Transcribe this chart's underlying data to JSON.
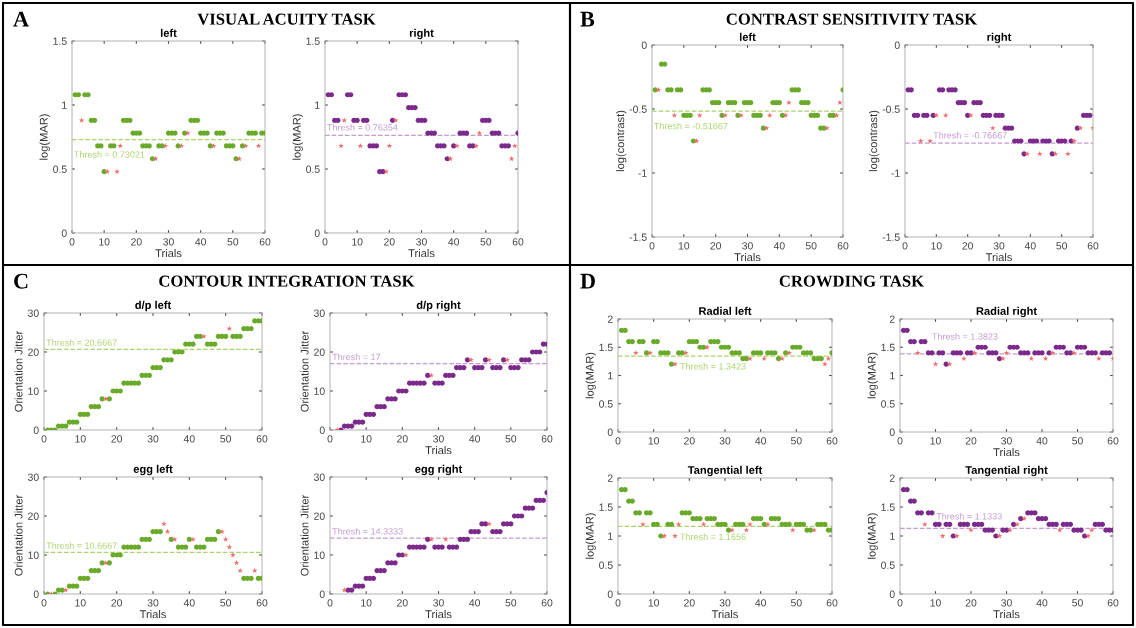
{
  "chart_data": [
    {
      "type": "scatter",
      "title": "left",
      "xlabel": "Trials",
      "ylabel": "log(MAR)",
      "xlim": [
        0,
        60
      ],
      "xticks": [
        0,
        10,
        20,
        30,
        40,
        50,
        60
      ],
      "ylim": [
        0,
        1.5
      ],
      "yticks": [
        0,
        0.5,
        1,
        1.5
      ],
      "annotations": [
        "A",
        "VISUAL ACUITY TASK"
      ],
      "ref_lines": [
        {
          "axis": "y",
          "value": 0.73021,
          "label": "Thresh = 0.73021",
          "color": "#a9d36b",
          "line_style": "dashed"
        }
      ],
      "series": [
        {
          "color": "#6aaa2a",
          "marker": "circle",
          "x": [
            1,
            2,
            4,
            5,
            6,
            7,
            8,
            9,
            10,
            12,
            13,
            16,
            17,
            18,
            19,
            20,
            21,
            22,
            23,
            24,
            25,
            27,
            28,
            30,
            31,
            32,
            33,
            35,
            37,
            38,
            39,
            40,
            41,
            42,
            43,
            45,
            46,
            47,
            48,
            49,
            50,
            51,
            53,
            55,
            56,
            57,
            59,
            60
          ],
          "values": [
            1.08,
            1.08,
            1.08,
            1.08,
            0.88,
            0.88,
            0.68,
            0.68,
            0.48,
            0.68,
            0.68,
            0.88,
            0.88,
            0.88,
            0.78,
            0.78,
            0.78,
            0.68,
            0.68,
            0.68,
            0.58,
            0.68,
            0.68,
            0.78,
            0.78,
            0.78,
            0.68,
            0.78,
            0.88,
            0.88,
            0.88,
            0.78,
            0.78,
            0.78,
            0.68,
            0.78,
            0.78,
            0.78,
            0.68,
            0.68,
            0.68,
            0.58,
            0.68,
            0.78,
            0.78,
            0.78,
            0.78,
            0.78
          ]
        },
        {
          "color": "#f26b6b",
          "marker": "star",
          "x": [
            3,
            11,
            14,
            15,
            26,
            29,
            34,
            36,
            44,
            52,
            54,
            58
          ],
          "values": [
            0.88,
            0.48,
            0.48,
            0.68,
            0.58,
            0.68,
            0.68,
            0.78,
            0.68,
            0.58,
            0.68,
            0.68
          ]
        }
      ]
    },
    {
      "type": "scatter",
      "title": "right",
      "xlabel": "Trials",
      "ylabel": "log(MAR)",
      "xlim": [
        0,
        60
      ],
      "xticks": [
        0,
        10,
        20,
        30,
        40,
        50,
        60
      ],
      "ylim": [
        0,
        1.5
      ],
      "yticks": [
        0,
        0.5,
        1,
        1.5
      ],
      "ref_lines": [
        {
          "axis": "y",
          "value": 0.76354,
          "label": "Thresh = 0.76354",
          "color": "#c49ad0",
          "line_style": "dashed"
        }
      ],
      "series": [
        {
          "color": "#7b2a8c",
          "marker": "circle",
          "x": [
            1,
            2,
            3,
            4,
            7,
            8,
            9,
            10,
            12,
            13,
            14,
            15,
            16,
            17,
            18,
            21,
            23,
            24,
            25,
            26,
            27,
            28,
            29,
            30,
            31,
            32,
            33,
            34,
            35,
            36,
            37,
            38,
            40,
            42,
            43,
            44,
            45,
            46,
            49,
            50,
            51,
            52,
            53,
            54,
            55,
            56,
            57,
            60
          ],
          "values": [
            1.08,
            1.08,
            0.88,
            0.88,
            1.08,
            1.08,
            0.88,
            0.88,
            0.88,
            0.88,
            0.68,
            0.68,
            0.68,
            0.48,
            0.48,
            0.88,
            1.08,
            1.08,
            1.08,
            0.98,
            0.98,
            0.98,
            0.88,
            0.88,
            0.88,
            0.78,
            0.78,
            0.78,
            0.68,
            0.68,
            0.68,
            0.58,
            0.68,
            0.78,
            0.78,
            0.78,
            0.68,
            0.68,
            0.88,
            0.88,
            0.88,
            0.78,
            0.78,
            0.78,
            0.68,
            0.68,
            0.68,
            0.78
          ]
        },
        {
          "color": "#f26b6b",
          "marker": "star",
          "x": [
            5,
            6,
            11,
            19,
            20,
            22,
            39,
            41,
            47,
            48,
            58,
            59
          ],
          "values": [
            0.68,
            0.88,
            0.68,
            0.48,
            0.68,
            0.88,
            0.58,
            0.68,
            0.68,
            0.78,
            0.58,
            0.68
          ]
        }
      ]
    },
    {
      "type": "scatter",
      "title": "left",
      "xlabel": "Trials",
      "ylabel": "log(contrast)",
      "xlim": [
        0,
        60
      ],
      "xticks": [
        0,
        10,
        20,
        30,
        40,
        50,
        60
      ],
      "ylim": [
        -1.5,
        0
      ],
      "yticks": [
        -1.5,
        -1,
        -0.5,
        0
      ],
      "annotations": [
        "B",
        "CONTRAST SENSITIVITY TASK"
      ],
      "ref_lines": [
        {
          "axis": "y",
          "value": -0.51667,
          "label": "Thresh = -0.51667",
          "color": "#a9d36b",
          "line_style": "dashed"
        }
      ],
      "series": [
        {
          "color": "#6aaa2a",
          "marker": "circle",
          "x": [
            1,
            3,
            4,
            5,
            6,
            8,
            9,
            10,
            11,
            12,
            13,
            16,
            17,
            18,
            19,
            20,
            21,
            22,
            24,
            25,
            26,
            27,
            29,
            30,
            31,
            32,
            33,
            34,
            35,
            38,
            39,
            40,
            41,
            44,
            45,
            46,
            47,
            48,
            49,
            50,
            51,
            52,
            53,
            54,
            56,
            57,
            60
          ],
          "values": [
            -0.35,
            -0.15,
            -0.15,
            -0.35,
            -0.35,
            -0.35,
            -0.35,
            -0.55,
            -0.55,
            -0.55,
            -0.75,
            -0.35,
            -0.35,
            -0.35,
            -0.45,
            -0.45,
            -0.45,
            -0.55,
            -0.45,
            -0.45,
            -0.45,
            -0.55,
            -0.45,
            -0.45,
            -0.45,
            -0.55,
            -0.55,
            -0.55,
            -0.65,
            -0.45,
            -0.45,
            -0.45,
            -0.55,
            -0.35,
            -0.35,
            -0.35,
            -0.45,
            -0.45,
            -0.45,
            -0.55,
            -0.55,
            -0.55,
            -0.65,
            -0.65,
            -0.55,
            -0.55,
            -0.35
          ]
        },
        {
          "color": "#f26b6b",
          "marker": "star",
          "x": [
            2,
            7,
            14,
            15,
            23,
            28,
            36,
            37,
            42,
            43,
            55,
            58,
            59
          ],
          "values": [
            -0.35,
            -0.55,
            -0.75,
            -0.55,
            -0.55,
            -0.55,
            -0.65,
            -0.55,
            -0.55,
            -0.45,
            -0.65,
            -0.55,
            -0.45
          ]
        }
      ]
    },
    {
      "type": "scatter",
      "title": "right",
      "xlabel": "Trials",
      "ylabel": "log(contrast)",
      "xlim": [
        0,
        60
      ],
      "xticks": [
        0,
        10,
        20,
        30,
        40,
        50,
        60
      ],
      "ylim": [
        -1.5,
        0
      ],
      "yticks": [
        -1.5,
        -1,
        -0.5,
        0
      ],
      "ref_lines": [
        {
          "axis": "y",
          "value": -0.76667,
          "label": "Thresh = -0.76667",
          "color": "#c49ad0",
          "line_style": "dashed"
        }
      ],
      "series": [
        {
          "color": "#7b2a8c",
          "marker": "circle",
          "x": [
            1,
            2,
            3,
            4,
            6,
            7,
            9,
            11,
            12,
            14,
            15,
            16,
            17,
            18,
            19,
            20,
            22,
            23,
            24,
            25,
            26,
            27,
            29,
            30,
            31,
            32,
            33,
            34,
            35,
            36,
            37,
            38,
            40,
            41,
            42,
            44,
            45,
            46,
            47,
            49,
            50,
            51,
            53,
            55,
            57,
            58,
            59
          ],
          "values": [
            -0.35,
            -0.35,
            -0.55,
            -0.55,
            -0.55,
            -0.55,
            -0.55,
            -0.35,
            -0.35,
            -0.35,
            -0.35,
            -0.35,
            -0.45,
            -0.45,
            -0.45,
            -0.55,
            -0.45,
            -0.45,
            -0.45,
            -0.55,
            -0.55,
            -0.55,
            -0.55,
            -0.55,
            -0.55,
            -0.65,
            -0.65,
            -0.65,
            -0.75,
            -0.75,
            -0.75,
            -0.85,
            -0.75,
            -0.75,
            -0.75,
            -0.75,
            -0.75,
            -0.75,
            -0.85,
            -0.75,
            -0.75,
            -0.75,
            -0.75,
            -0.65,
            -0.55,
            -0.55,
            -0.55
          ]
        },
        {
          "color": "#f26b6b",
          "marker": "star",
          "x": [
            5,
            8,
            10,
            13,
            21,
            28,
            39,
            43,
            48,
            52,
            54,
            56,
            60
          ],
          "values": [
            -0.75,
            -0.75,
            -0.55,
            -0.55,
            -0.55,
            -0.65,
            -0.85,
            -0.85,
            -0.85,
            -0.85,
            -0.75,
            -0.65,
            -0.65
          ]
        }
      ]
    },
    {
      "type": "scatter",
      "title": "d/p left",
      "ylabel": "Orientation Jitter",
      "xlim": [
        0,
        60
      ],
      "xticks": [
        0,
        10,
        20,
        30,
        40,
        50,
        60
      ],
      "ylim": [
        0,
        30
      ],
      "yticks": [
        0,
        10,
        20,
        30
      ],
      "annotations": [
        "C",
        "CONTOUR INTEGRATION TASK"
      ],
      "ref_lines": [
        {
          "axis": "y",
          "value": 20.6667,
          "label": "Thresh = 20.6667",
          "color": "#a9d36b",
          "line_style": "dashed"
        }
      ],
      "series": [
        {
          "color": "#6aaa2a",
          "marker": "circle",
          "x": [
            1,
            2,
            3,
            4,
            5,
            6,
            7,
            8,
            9,
            10,
            11,
            12,
            13,
            14,
            15,
            16,
            18,
            19,
            20,
            21,
            22,
            23,
            24,
            25,
            26,
            27,
            28,
            29,
            30,
            31,
            32,
            33,
            34,
            35,
            36,
            37,
            38,
            39,
            40,
            41,
            42,
            43,
            45,
            46,
            47,
            48,
            49,
            50,
            52,
            53,
            54,
            55,
            56,
            57,
            58,
            59,
            60
          ],
          "values": [
            0,
            0,
            0,
            1,
            1,
            1,
            2,
            2,
            2,
            4,
            4,
            4,
            6,
            6,
            6,
            8,
            8,
            10,
            10,
            10,
            12,
            12,
            12,
            12,
            12,
            14,
            14,
            14,
            16,
            16,
            16,
            18,
            18,
            18,
            20,
            20,
            20,
            22,
            22,
            22,
            24,
            24,
            22,
            22,
            22,
            24,
            24,
            24,
            24,
            24,
            24,
            26,
            26,
            26,
            28,
            28,
            28
          ]
        },
        {
          "color": "#f26b6b",
          "marker": "star",
          "x": [
            17,
            44,
            51
          ],
          "values": [
            8,
            24,
            26
          ]
        }
      ]
    },
    {
      "type": "scatter",
      "title": "d/p right",
      "xlabel": "Trials",
      "ylabel": "Orientation Jitter",
      "xlim": [
        0,
        60
      ],
      "xticks": [
        0,
        10,
        20,
        30,
        40,
        50,
        60
      ],
      "ylim": [
        0,
        30
      ],
      "yticks": [
        0,
        10,
        20,
        30
      ],
      "ref_lines": [
        {
          "axis": "y",
          "value": 17,
          "label": "Thresh = 17",
          "color": "#c49ad0",
          "line_style": "dashed"
        }
      ],
      "series": [
        {
          "color": "#7b2a8c",
          "marker": "circle",
          "x": [
            3,
            4,
            5,
            6,
            7,
            8,
            9,
            10,
            11,
            12,
            13,
            14,
            15,
            16,
            17,
            18,
            19,
            20,
            21,
            22,
            23,
            24,
            25,
            26,
            27,
            29,
            30,
            31,
            32,
            33,
            34,
            35,
            36,
            37,
            38,
            40,
            41,
            42,
            43,
            45,
            46,
            47,
            48,
            50,
            51,
            52,
            53,
            54,
            55,
            56,
            57,
            58,
            59,
            60
          ],
          "values": [
            0,
            1,
            1,
            1,
            2,
            2,
            2,
            4,
            4,
            4,
            6,
            6,
            6,
            8,
            8,
            8,
            10,
            10,
            10,
            12,
            12,
            12,
            12,
            12,
            14,
            12,
            12,
            12,
            14,
            14,
            14,
            16,
            16,
            16,
            18,
            16,
            16,
            16,
            18,
            16,
            16,
            16,
            18,
            16,
            16,
            16,
            18,
            18,
            18,
            20,
            20,
            20,
            22,
            22
          ]
        },
        {
          "color": "#f26b6b",
          "marker": "star",
          "x": [
            2,
            28,
            39,
            44,
            49
          ],
          "values": [
            0,
            14,
            18,
            18,
            18
          ]
        }
      ]
    },
    {
      "type": "scatter",
      "title": "egg left",
      "xlabel": "Trials",
      "ylabel": "Orientation Jitter",
      "xlim": [
        0,
        60
      ],
      "xticks": [
        0,
        10,
        20,
        30,
        40,
        50,
        60
      ],
      "ylim": [
        0,
        30
      ],
      "yticks": [
        0,
        10,
        20,
        30
      ],
      "ref_lines": [
        {
          "axis": "y",
          "value": 10.6667,
          "label": "Thresh = 10.6667",
          "color": "#a9d36b",
          "line_style": "dashed"
        }
      ],
      "series": [
        {
          "color": "#6aaa2a",
          "marker": "circle",
          "x": [
            1,
            3,
            4,
            5,
            7,
            8,
            9,
            10,
            11,
            12,
            13,
            14,
            15,
            16,
            18,
            19,
            20,
            21,
            22,
            23,
            24,
            25,
            26,
            27,
            28,
            29,
            30,
            31,
            32,
            35,
            37,
            38,
            39,
            40,
            42,
            43,
            44,
            45,
            46,
            47,
            48,
            55,
            56,
            57,
            59,
            60
          ],
          "values": [
            0,
            0,
            1,
            1,
            2,
            2,
            2,
            4,
            4,
            4,
            6,
            6,
            6,
            8,
            8,
            10,
            10,
            10,
            12,
            12,
            12,
            12,
            12,
            14,
            14,
            14,
            16,
            16,
            16,
            14,
            12,
            12,
            12,
            14,
            12,
            12,
            12,
            14,
            14,
            14,
            16,
            4,
            4,
            4,
            4,
            4
          ]
        },
        {
          "color": "#f26b6b",
          "marker": "star",
          "x": [
            2,
            6,
            17,
            33,
            34,
            36,
            41,
            49,
            50,
            51,
            52,
            53,
            54,
            58
          ],
          "values": [
            0,
            1,
            8,
            18,
            16,
            14,
            14,
            16,
            14,
            12,
            10,
            8,
            6,
            6
          ]
        }
      ]
    },
    {
      "type": "scatter",
      "title": "egg right",
      "xlabel": "Trials",
      "ylabel": "Orientation Jitter",
      "xlim": [
        0,
        60
      ],
      "xticks": [
        0,
        10,
        20,
        30,
        40,
        50,
        60
      ],
      "ylim": [
        0,
        30
      ],
      "yticks": [
        0,
        10,
        20,
        30
      ],
      "ref_lines": [
        {
          "axis": "y",
          "value": 14.3333,
          "label": "Thresh = 14.3333",
          "color": "#c49ad0",
          "line_style": "dashed"
        }
      ],
      "series": [
        {
          "color": "#7b2a8c",
          "marker": "circle",
          "x": [
            5,
            6,
            7,
            8,
            9,
            10,
            11,
            12,
            13,
            14,
            15,
            16,
            17,
            18,
            19,
            20,
            22,
            23,
            24,
            25,
            26,
            27,
            29,
            30,
            31,
            33,
            34,
            35,
            36,
            37,
            38,
            39,
            40,
            41,
            42,
            43,
            45,
            46,
            47,
            48,
            49,
            50,
            51,
            52,
            53,
            54,
            55,
            56,
            57,
            58,
            59,
            60
          ],
          "values": [
            1,
            1,
            2,
            2,
            2,
            4,
            4,
            4,
            6,
            6,
            6,
            8,
            8,
            8,
            10,
            10,
            12,
            12,
            12,
            12,
            12,
            14,
            12,
            12,
            12,
            12,
            12,
            12,
            14,
            14,
            14,
            16,
            16,
            16,
            18,
            18,
            16,
            16,
            16,
            18,
            18,
            18,
            20,
            20,
            20,
            22,
            22,
            22,
            24,
            24,
            24,
            26
          ]
        },
        {
          "color": "#f26b6b",
          "marker": "star",
          "x": [
            4,
            21,
            28,
            32,
            44
          ],
          "values": [
            1,
            10,
            14,
            14,
            18
          ]
        }
      ]
    },
    {
      "type": "scatter",
      "title": "Radial left",
      "ylabel": "log(MAR)",
      "xlim": [
        0,
        60
      ],
      "xticks": [
        0,
        10,
        20,
        30,
        40,
        50,
        60
      ],
      "ylim": [
        0,
        2
      ],
      "yticks": [
        0,
        0.5,
        1,
        1.5,
        2
      ],
      "annotations": [
        "D",
        "CROWDING TASK"
      ],
      "ref_lines": [
        {
          "axis": "y",
          "value": 1.3423,
          "label": "Thresh = 1.3423",
          "color": "#a9d36b",
          "line_style": "dashed"
        }
      ],
      "series": [
        {
          "color": "#6aaa2a",
          "marker": "circle",
          "x": [
            1,
            2,
            3,
            4,
            6,
            7,
            8,
            10,
            11,
            12,
            13,
            14,
            15,
            17,
            18,
            20,
            21,
            22,
            23,
            24,
            26,
            27,
            28,
            29,
            30,
            31,
            32,
            33,
            34,
            35,
            36,
            38,
            39,
            40,
            42,
            43,
            44,
            45,
            47,
            49,
            50,
            51,
            52,
            53,
            54,
            55,
            56,
            57,
            60
          ],
          "values": [
            1.8,
            1.8,
            1.6,
            1.6,
            1.6,
            1.6,
            1.4,
            1.6,
            1.6,
            1.4,
            1.4,
            1.4,
            1.2,
            1.4,
            1.4,
            1.6,
            1.6,
            1.6,
            1.5,
            1.5,
            1.6,
            1.6,
            1.6,
            1.5,
            1.5,
            1.5,
            1.4,
            1.4,
            1.4,
            1.3,
            1.3,
            1.4,
            1.4,
            1.4,
            1.4,
            1.4,
            1.4,
            1.3,
            1.4,
            1.5,
            1.5,
            1.5,
            1.4,
            1.4,
            1.4,
            1.3,
            1.3,
            1.3,
            1.4
          ]
        },
        {
          "color": "#f26b6b",
          "marker": "star",
          "x": [
            5,
            9,
            16,
            19,
            25,
            37,
            41,
            46,
            48,
            58,
            59
          ],
          "values": [
            1.4,
            1.4,
            1.2,
            1.4,
            1.5,
            1.3,
            1.3,
            1.3,
            1.4,
            1.2,
            1.3
          ]
        }
      ]
    },
    {
      "type": "scatter",
      "title": "Radial right",
      "xlabel": "Trials",
      "ylabel": "log(MAR)",
      "xlim": [
        0,
        60
      ],
      "xticks": [
        0,
        10,
        20,
        30,
        40,
        50,
        60
      ],
      "ylim": [
        0,
        2
      ],
      "yticks": [
        0,
        0.5,
        1,
        1.5,
        2
      ],
      "ref_lines": [
        {
          "axis": "y",
          "value": 1.3823,
          "label": "Thresh = 1.3823",
          "color": "#c49ad0",
          "line_style": "dashed"
        }
      ],
      "series": [
        {
          "color": "#7b2a8c",
          "marker": "circle",
          "x": [
            1,
            2,
            3,
            4,
            6,
            7,
            8,
            9,
            11,
            12,
            13,
            15,
            16,
            17,
            19,
            20,
            22,
            23,
            24,
            25,
            26,
            27,
            28,
            31,
            32,
            33,
            34,
            35,
            36,
            38,
            39,
            40,
            42,
            44,
            45,
            46,
            47,
            48,
            50,
            51,
            52,
            53,
            54,
            55,
            57,
            58,
            59
          ],
          "values": [
            1.8,
            1.8,
            1.6,
            1.6,
            1.6,
            1.6,
            1.4,
            1.4,
            1.4,
            1.4,
            1.2,
            1.4,
            1.4,
            1.4,
            1.4,
            1.4,
            1.5,
            1.5,
            1.5,
            1.4,
            1.4,
            1.4,
            1.3,
            1.5,
            1.5,
            1.5,
            1.4,
            1.4,
            1.4,
            1.4,
            1.4,
            1.4,
            1.4,
            1.5,
            1.5,
            1.5,
            1.4,
            1.4,
            1.5,
            1.5,
            1.5,
            1.4,
            1.4,
            1.4,
            1.4,
            1.4,
            1.4
          ]
        },
        {
          "color": "#f26b6b",
          "marker": "star",
          "x": [
            5,
            10,
            14,
            18,
            21,
            29,
            30,
            37,
            41,
            43,
            49,
            56,
            60
          ],
          "values": [
            1.4,
            1.2,
            1.2,
            1.3,
            1.4,
            1.3,
            1.4,
            1.3,
            1.3,
            1.4,
            1.4,
            1.3,
            1.3
          ]
        }
      ]
    },
    {
      "type": "scatter",
      "title": "Tangential left",
      "xlabel": "Trials",
      "ylabel": "log(MAR)",
      "xlim": [
        0,
        60
      ],
      "xticks": [
        0,
        10,
        20,
        30,
        40,
        50,
        60
      ],
      "ylim": [
        0,
        2
      ],
      "yticks": [
        0,
        0.5,
        1,
        1.5,
        2
      ],
      "ref_lines": [
        {
          "axis": "y",
          "value": 1.1656,
          "label": "Thresh = 1.1656",
          "color": "#a9d36b",
          "line_style": "dashed"
        }
      ],
      "series": [
        {
          "color": "#6aaa2a",
          "marker": "circle",
          "x": [
            1,
            2,
            3,
            4,
            5,
            6,
            8,
            9,
            10,
            11,
            12,
            14,
            15,
            18,
            19,
            20,
            21,
            22,
            23,
            25,
            26,
            27,
            28,
            29,
            30,
            31,
            33,
            34,
            35,
            38,
            39,
            40,
            41,
            43,
            44,
            45,
            46,
            47,
            48,
            50,
            51,
            52,
            53,
            54,
            56,
            57,
            58,
            59,
            60
          ],
          "values": [
            1.8,
            1.8,
            1.6,
            1.6,
            1.4,
            1.4,
            1.4,
            1.4,
            1.2,
            1.2,
            1.0,
            1.2,
            1.2,
            1.4,
            1.4,
            1.4,
            1.3,
            1.3,
            1.3,
            1.3,
            1.3,
            1.3,
            1.2,
            1.2,
            1.2,
            1.1,
            1.2,
            1.2,
            1.2,
            1.3,
            1.3,
            1.3,
            1.2,
            1.3,
            1.3,
            1.3,
            1.2,
            1.2,
            1.2,
            1.2,
            1.2,
            1.2,
            1.1,
            1.1,
            1.2,
            1.2,
            1.2,
            1.1,
            1.1
          ]
        },
        {
          "color": "#f26b6b",
          "marker": "star",
          "x": [
            7,
            13,
            16,
            17,
            24,
            32,
            36,
            37,
            42,
            49,
            55
          ],
          "values": [
            1.2,
            1.0,
            1.0,
            1.2,
            1.2,
            1.1,
            1.1,
            1.2,
            1.2,
            1.1,
            1.1
          ]
        }
      ]
    },
    {
      "type": "scatter",
      "title": "Tangential right",
      "xlabel": "Trials",
      "ylabel": "log(MAR)",
      "xlim": [
        0,
        60
      ],
      "xticks": [
        0,
        10,
        20,
        30,
        40,
        50,
        60
      ],
      "ylim": [
        0,
        2
      ],
      "yticks": [
        0,
        0.5,
        1,
        1.5,
        2
      ],
      "ref_lines": [
        {
          "axis": "y",
          "value": 1.1333,
          "label": "Thresh = 1.1333",
          "color": "#c49ad0",
          "line_style": "dashed"
        }
      ],
      "series": [
        {
          "color": "#7b2a8c",
          "marker": "circle",
          "x": [
            1,
            2,
            3,
            4,
            5,
            6,
            8,
            9,
            10,
            11,
            13,
            14,
            15,
            17,
            18,
            19,
            21,
            22,
            23,
            24,
            25,
            26,
            27,
            29,
            30,
            32,
            34,
            36,
            37,
            38,
            39,
            40,
            41,
            42,
            43,
            44,
            46,
            47,
            48,
            49,
            50,
            51,
            52,
            55,
            56,
            57,
            58,
            59,
            60
          ],
          "values": [
            1.8,
            1.8,
            1.6,
            1.6,
            1.4,
            1.4,
            1.4,
            1.4,
            1.2,
            1.2,
            1.2,
            1.2,
            1.0,
            1.2,
            1.2,
            1.2,
            1.2,
            1.2,
            1.2,
            1.1,
            1.1,
            1.1,
            1.0,
            1.1,
            1.1,
            1.2,
            1.3,
            1.4,
            1.4,
            1.4,
            1.3,
            1.3,
            1.3,
            1.2,
            1.2,
            1.2,
            1.2,
            1.2,
            1.2,
            1.1,
            1.1,
            1.1,
            1.0,
            1.2,
            1.2,
            1.2,
            1.1,
            1.1,
            1.1
          ]
        },
        {
          "color": "#f26b6b",
          "marker": "star",
          "x": [
            7,
            12,
            16,
            20,
            28,
            31,
            33,
            35,
            45,
            53,
            54
          ],
          "values": [
            1.2,
            1.0,
            1.0,
            1.1,
            1.0,
            1.1,
            1.2,
            1.3,
            1.1,
            1.0,
            1.1
          ]
        }
      ]
    }
  ]
}
